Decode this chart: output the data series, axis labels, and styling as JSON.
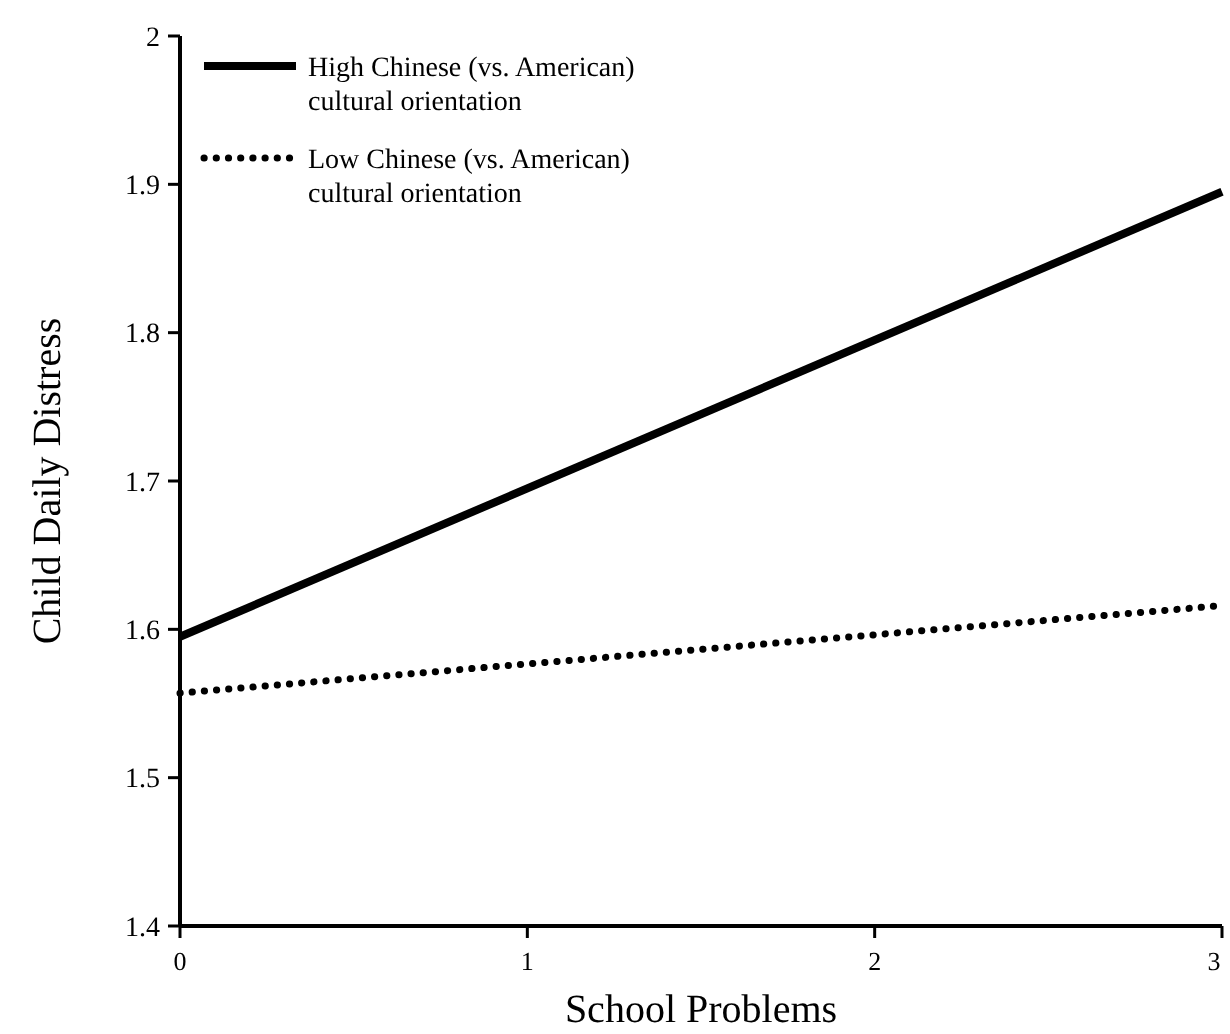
{
  "chart_data": {
    "type": "line",
    "xlabel": "School Problems",
    "ylabel": "Child Daily Distress",
    "x": [
      0,
      3
    ],
    "series": [
      {
        "name": "High Chinese (vs. American) cultural orientation",
        "color": "#000000",
        "values": [
          1.595,
          1.895
        ],
        "line_style": "solid"
      },
      {
        "name": "Low Chinese (vs. American) cultural orientation",
        "color": "#000000",
        "values": [
          1.557,
          1.616
        ],
        "line_style": "dotted"
      }
    ],
    "xlim": [
      0,
      3
    ],
    "xticks": [
      0,
      1,
      2,
      3
    ],
    "ylim": [
      1.4,
      2
    ],
    "yticks": [
      1.4,
      1.5,
      1.6,
      1.7,
      1.8,
      1.9,
      2
    ],
    "grid": false,
    "legend": "top left",
    "marker": "none"
  }
}
